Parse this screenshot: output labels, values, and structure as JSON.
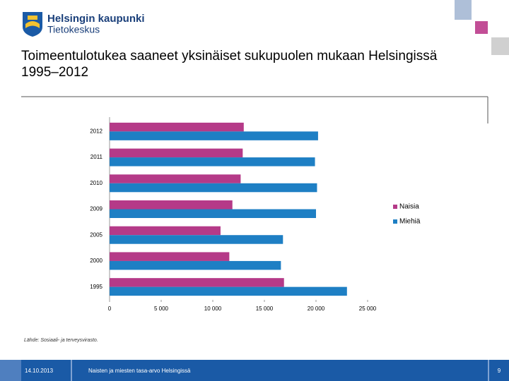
{
  "header": {
    "org": "Helsingin kaupunki",
    "unit": "Tietokeskus"
  },
  "source": "Lähde: Sosiaali- ja terveysvirasto.",
  "footer": {
    "date": "14.10.2013",
    "text": "Naisten ja miesten tasa-arvo Helsingissä",
    "page": "9"
  },
  "chart_data": {
    "type": "bar",
    "title": "Toimeentulotukea saaneet yksinäiset sukupuolen mukaan Helsingissä 1995–2012",
    "categories": [
      "2012",
      "2011",
      "2010",
      "2009",
      "2005",
      "2000",
      "1995"
    ],
    "series": [
      {
        "name": "Naisia",
        "color": "#b53a88",
        "values": [
          13000,
          12900,
          12700,
          11900,
          10750,
          11600,
          16900
        ]
      },
      {
        "name": "Miehiä",
        "color": "#1e7fc4",
        "values": [
          20200,
          19900,
          20100,
          20000,
          16800,
          16600,
          23000
        ]
      }
    ],
    "xlim": [
      0,
      25000
    ],
    "xticks": [
      0,
      {
        "value": 5000,
        "label": "5 000"
      },
      {
        "value": 10000,
        "label": "10 000"
      },
      {
        "value": 15000,
        "label": "15 000"
      },
      {
        "value": 20000,
        "label": "20 000"
      },
      {
        "value": 25000,
        "label": "25 000"
      }
    ]
  }
}
